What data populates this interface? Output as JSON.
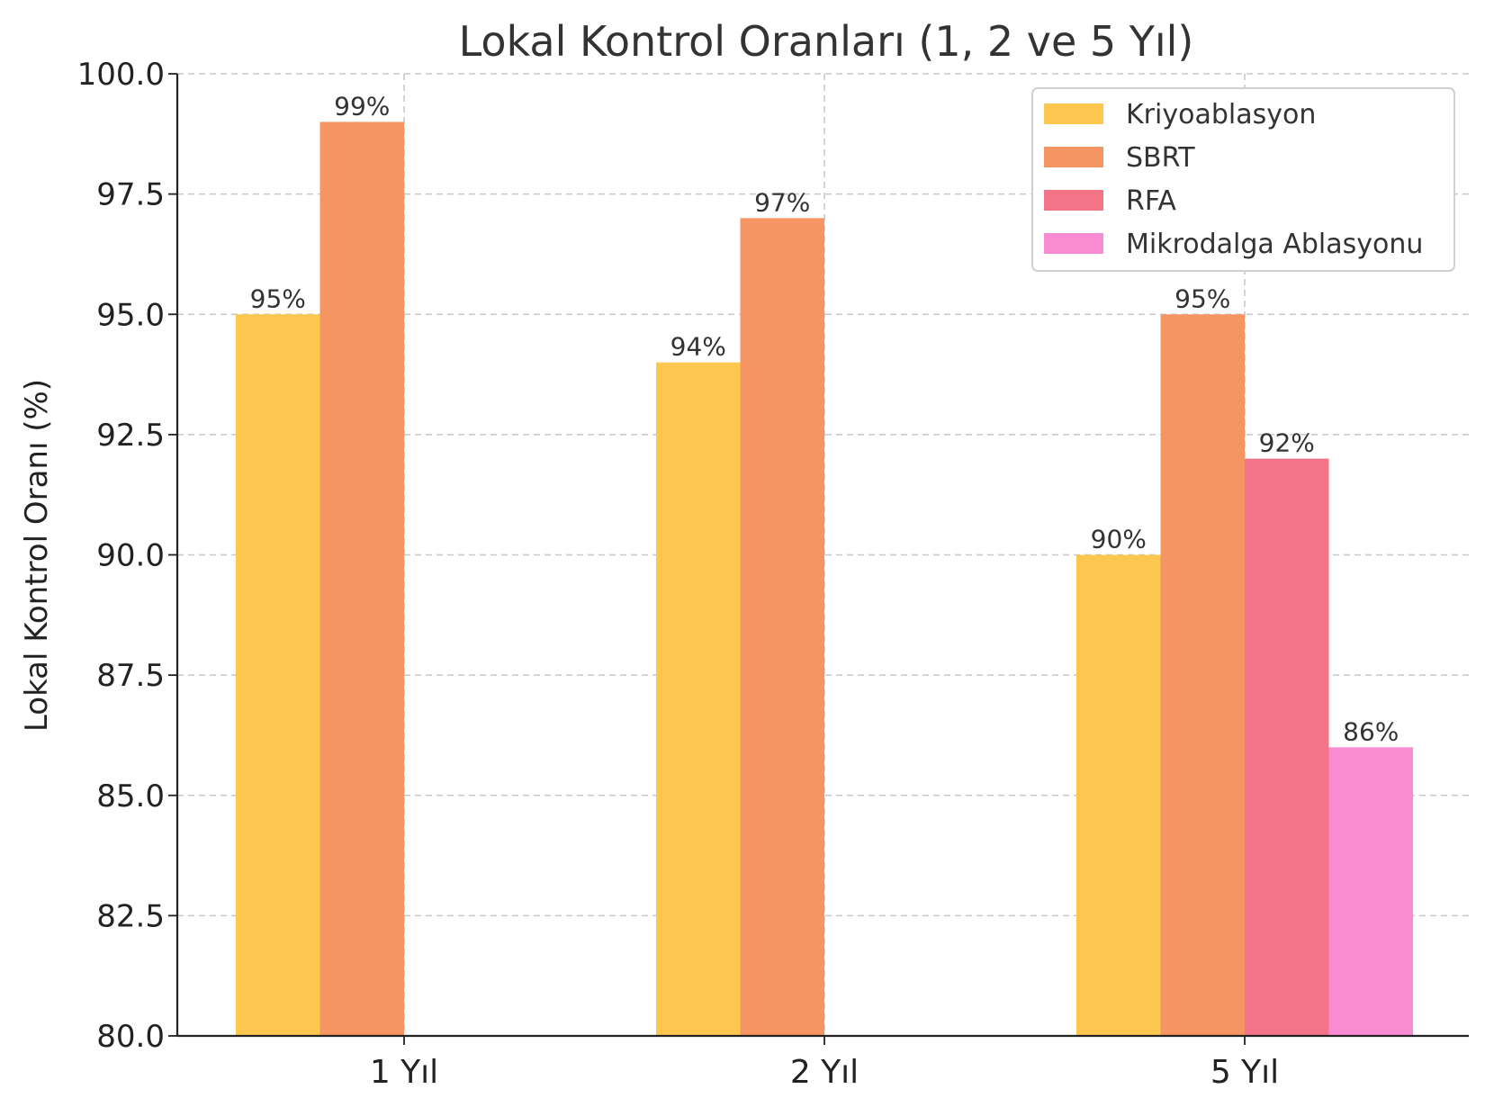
{
  "chart_data": {
    "type": "bar",
    "title": "Lokal Kontrol Oranları (1, 2 ve 5 Yıl)",
    "ylabel": "Lokal Kontrol Oranı (%)",
    "xlabel": "",
    "categories": [
      "1 Yıl",
      "2 Yıl",
      "5 Yıl"
    ],
    "ylim": [
      80,
      100
    ],
    "yticks": [
      80,
      82.5,
      85,
      87.5,
      90,
      92.5,
      95,
      97.5,
      100
    ],
    "ytick_labels": [
      "80.0",
      "82.5",
      "85.0",
      "87.5",
      "90.0",
      "92.5",
      "95.0",
      "97.5",
      "100.0"
    ],
    "grid": true,
    "legend_position": "top-right",
    "series": [
      {
        "name": "Kriyoablasyon",
        "color": "#FDC64E",
        "values": [
          95,
          94,
          90
        ],
        "labels": [
          "95%",
          "94%",
          "90%"
        ]
      },
      {
        "name": "SBRT",
        "color": "#F59563",
        "values": [
          99,
          97,
          95
        ],
        "labels": [
          "99%",
          "97%",
          "95%"
        ]
      },
      {
        "name": "RFA",
        "color": "#F37387",
        "values": [
          null,
          null,
          92
        ],
        "labels": [
          null,
          null,
          "92%"
        ]
      },
      {
        "name": "Mikrodalga Ablasyonu",
        "color": "#F98BD3",
        "values": [
          null,
          null,
          86
        ],
        "labels": [
          null,
          null,
          "86%"
        ]
      }
    ]
  }
}
